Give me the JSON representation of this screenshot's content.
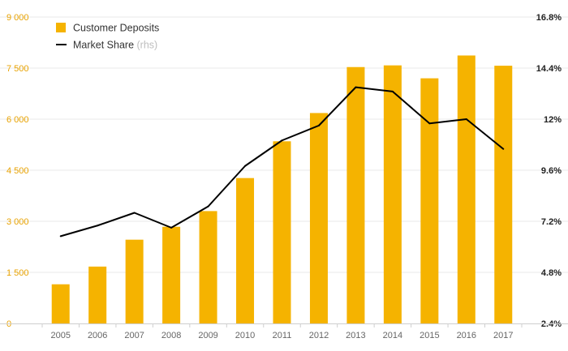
{
  "chart_data": {
    "type": "bar+line",
    "categories": [
      "2005",
      "2006",
      "2007",
      "2008",
      "2009",
      "2010",
      "2011",
      "2012",
      "2013",
      "2014",
      "2015",
      "2016",
      "2017"
    ],
    "series": [
      {
        "name": "Customer Deposits",
        "type": "bar",
        "axis": "left",
        "color": "#f5b300",
        "values": [
          1150,
          1670,
          2460,
          2840,
          3300,
          4270,
          5350,
          6180,
          7530,
          7580,
          7200,
          7870,
          7570
        ]
      },
      {
        "name": "Market Share",
        "name_suffix": "(rhs)",
        "type": "line",
        "axis": "right",
        "color": "#000000",
        "values": [
          6.5,
          7.0,
          7.6,
          6.9,
          7.9,
          9.8,
          11.0,
          11.7,
          13.5,
          13.3,
          11.8,
          12.0,
          10.6
        ]
      }
    ],
    "y_left": {
      "ticks": [
        "0",
        "1 500",
        "3 000",
        "4 500",
        "6 000",
        "7 500",
        "9 000"
      ],
      "range": [
        0,
        9000
      ]
    },
    "y_right": {
      "ticks": [
        "2.4%",
        "4.8%",
        "7.2%",
        "9.6%",
        "12%",
        "14.4%",
        "16.8%"
      ],
      "range": [
        2.4,
        16.8
      ]
    },
    "grid": true,
    "legend_position": "top-left"
  }
}
